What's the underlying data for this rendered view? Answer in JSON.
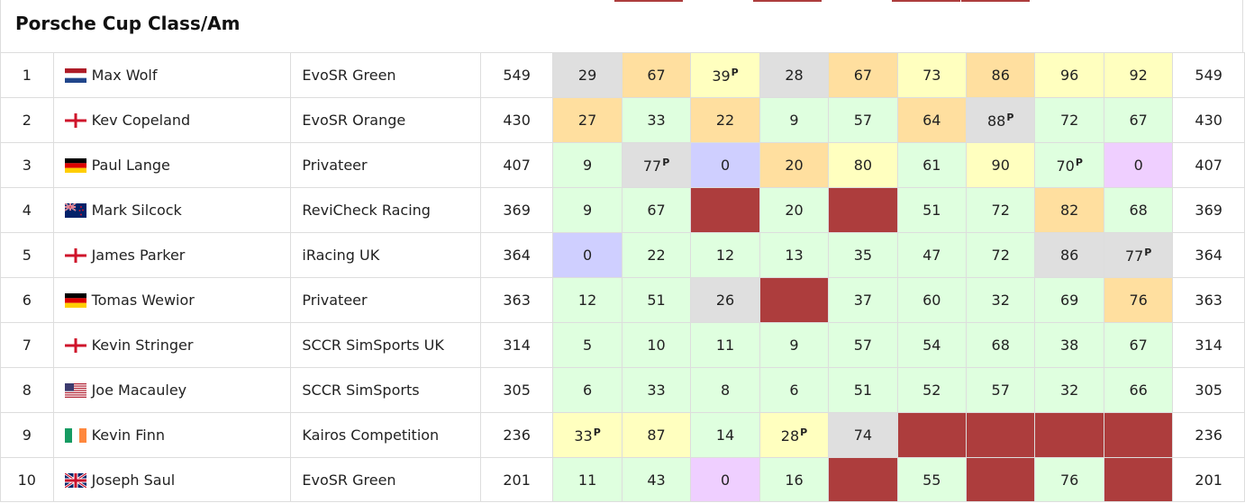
{
  "title": "Porsche Cup Class/Am",
  "cell_colors": {
    "grey": "#dfdfdf",
    "orange": "#ffdf9f",
    "yellow": "#ffffbf",
    "green": "#dfffdf",
    "blue": "#cfcfff",
    "purple": "#efcfff",
    "dnf": "#ad3d3d"
  },
  "top_strip": [
    "none",
    "dnf",
    "none",
    "dnf",
    "none",
    "dnf",
    "dnf",
    "none"
  ],
  "rows": [
    {
      "pos": "1",
      "flag": "netherlands-flag-icon",
      "driver": "Max Wolf",
      "team": "EvoSR Green",
      "points": "549",
      "total": "549",
      "races": [
        {
          "v": "29",
          "c": "grey"
        },
        {
          "v": "67",
          "c": "orange"
        },
        {
          "v": "39",
          "c": "yellow",
          "p": "P"
        },
        {
          "v": "28",
          "c": "grey"
        },
        {
          "v": "67",
          "c": "orange"
        },
        {
          "v": "73",
          "c": "yellow"
        },
        {
          "v": "86",
          "c": "orange"
        },
        {
          "v": "96",
          "c": "yellow"
        },
        {
          "v": "92",
          "c": "yellow"
        }
      ]
    },
    {
      "pos": "2",
      "flag": "england-flag-icon",
      "driver": "Kev Copeland",
      "team": "EvoSR Orange",
      "points": "430",
      "total": "430",
      "races": [
        {
          "v": "27",
          "c": "orange"
        },
        {
          "v": "33",
          "c": "green"
        },
        {
          "v": "22",
          "c": "orange"
        },
        {
          "v": "9",
          "c": "green"
        },
        {
          "v": "57",
          "c": "green"
        },
        {
          "v": "64",
          "c": "orange"
        },
        {
          "v": "88",
          "c": "grey",
          "p": "P"
        },
        {
          "v": "72",
          "c": "green"
        },
        {
          "v": "67",
          "c": "green"
        }
      ]
    },
    {
      "pos": "3",
      "flag": "germany-flag-icon",
      "driver": "Paul Lange",
      "team": "Privateer",
      "points": "407",
      "total": "407",
      "races": [
        {
          "v": "9",
          "c": "green"
        },
        {
          "v": "77",
          "c": "grey",
          "p": "P"
        },
        {
          "v": "0",
          "c": "blue"
        },
        {
          "v": "20",
          "c": "orange"
        },
        {
          "v": "80",
          "c": "yellow"
        },
        {
          "v": "61",
          "c": "green"
        },
        {
          "v": "90",
          "c": "yellow"
        },
        {
          "v": "70",
          "c": "green",
          "p": "P"
        },
        {
          "v": "0",
          "c": "purple"
        }
      ]
    },
    {
      "pos": "4",
      "flag": "new-zealand-flag-icon",
      "driver": "Mark Silcock",
      "team": "ReviCheck Racing",
      "points": "369",
      "total": "369",
      "races": [
        {
          "v": "9",
          "c": "green"
        },
        {
          "v": "67",
          "c": "green"
        },
        {
          "v": "",
          "c": "dnf"
        },
        {
          "v": "20",
          "c": "green"
        },
        {
          "v": "",
          "c": "dnf"
        },
        {
          "v": "51",
          "c": "green"
        },
        {
          "v": "72",
          "c": "green"
        },
        {
          "v": "82",
          "c": "orange"
        },
        {
          "v": "68",
          "c": "green"
        }
      ]
    },
    {
      "pos": "5",
      "flag": "england-flag-icon",
      "driver": "James Parker",
      "team": "iRacing UK",
      "points": "364",
      "total": "364",
      "races": [
        {
          "v": "0",
          "c": "blue"
        },
        {
          "v": "22",
          "c": "green"
        },
        {
          "v": "12",
          "c": "green"
        },
        {
          "v": "13",
          "c": "green"
        },
        {
          "v": "35",
          "c": "green"
        },
        {
          "v": "47",
          "c": "green"
        },
        {
          "v": "72",
          "c": "green"
        },
        {
          "v": "86",
          "c": "grey"
        },
        {
          "v": "77",
          "c": "grey",
          "p": "P"
        }
      ]
    },
    {
      "pos": "6",
      "flag": "germany-flag-icon",
      "driver": "Tomas Wewior",
      "team": "Privateer",
      "points": "363",
      "total": "363",
      "races": [
        {
          "v": "12",
          "c": "green"
        },
        {
          "v": "51",
          "c": "green"
        },
        {
          "v": "26",
          "c": "grey"
        },
        {
          "v": "",
          "c": "dnf"
        },
        {
          "v": "37",
          "c": "green"
        },
        {
          "v": "60",
          "c": "green"
        },
        {
          "v": "32",
          "c": "green"
        },
        {
          "v": "69",
          "c": "green"
        },
        {
          "v": "76",
          "c": "orange"
        }
      ]
    },
    {
      "pos": "7",
      "flag": "england-flag-icon",
      "driver": "Kevin Stringer",
      "team": "SCCR SimSports UK",
      "points": "314",
      "total": "314",
      "races": [
        {
          "v": "5",
          "c": "green"
        },
        {
          "v": "10",
          "c": "green"
        },
        {
          "v": "11",
          "c": "green"
        },
        {
          "v": "9",
          "c": "green"
        },
        {
          "v": "57",
          "c": "green"
        },
        {
          "v": "54",
          "c": "green"
        },
        {
          "v": "68",
          "c": "green"
        },
        {
          "v": "38",
          "c": "green"
        },
        {
          "v": "67",
          "c": "green"
        }
      ]
    },
    {
      "pos": "8",
      "flag": "usa-flag-icon",
      "driver": "Joe Macauley",
      "team": "SCCR SimSports",
      "points": "305",
      "total": "305",
      "races": [
        {
          "v": "6",
          "c": "green"
        },
        {
          "v": "33",
          "c": "green"
        },
        {
          "v": "8",
          "c": "green"
        },
        {
          "v": "6",
          "c": "green"
        },
        {
          "v": "51",
          "c": "green"
        },
        {
          "v": "52",
          "c": "green"
        },
        {
          "v": "57",
          "c": "green"
        },
        {
          "v": "32",
          "c": "green"
        },
        {
          "v": "66",
          "c": "green"
        }
      ]
    },
    {
      "pos": "9",
      "flag": "ireland-flag-icon",
      "driver": "Kevin Finn",
      "team": "Kairos Competition",
      "points": "236",
      "total": "236",
      "races": [
        {
          "v": "33",
          "c": "yellow",
          "p": "P"
        },
        {
          "v": "87",
          "c": "yellow"
        },
        {
          "v": "14",
          "c": "green"
        },
        {
          "v": "28",
          "c": "yellow",
          "p": "P"
        },
        {
          "v": "74",
          "c": "grey"
        },
        {
          "v": "",
          "c": "dnf"
        },
        {
          "v": "",
          "c": "dnf"
        },
        {
          "v": "",
          "c": "dnf"
        },
        {
          "v": "",
          "c": "dnf"
        }
      ]
    },
    {
      "pos": "10",
      "flag": "uk-flag-icon",
      "driver": "Joseph Saul",
      "team": "EvoSR Green",
      "points": "201",
      "total": "201",
      "races": [
        {
          "v": "11",
          "c": "green"
        },
        {
          "v": "43",
          "c": "green"
        },
        {
          "v": "0",
          "c": "purple"
        },
        {
          "v": "16",
          "c": "green"
        },
        {
          "v": "",
          "c": "dnf"
        },
        {
          "v": "55",
          "c": "green"
        },
        {
          "v": "",
          "c": "dnf"
        },
        {
          "v": "76",
          "c": "green"
        },
        {
          "v": "",
          "c": "dnf"
        }
      ]
    }
  ]
}
